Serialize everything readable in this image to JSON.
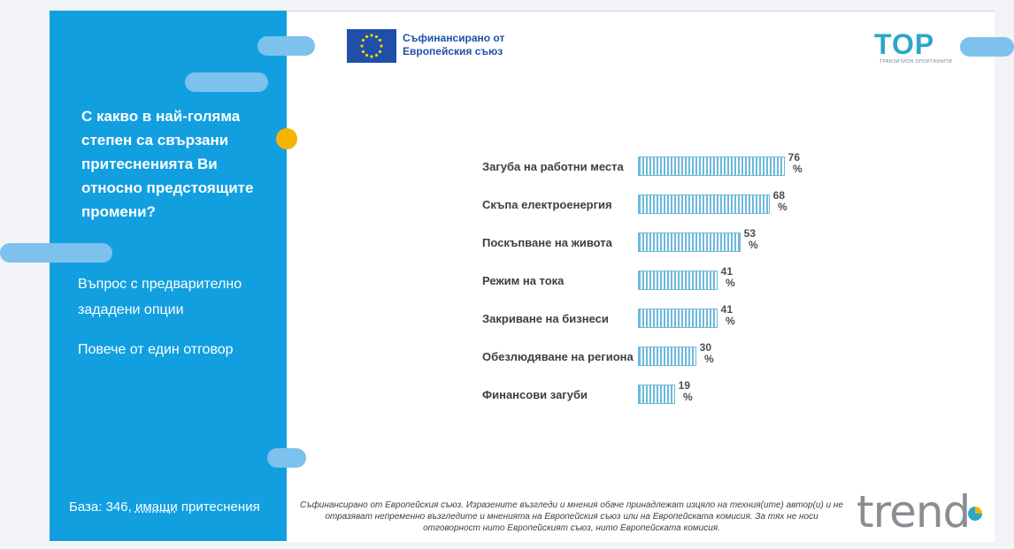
{
  "left_panel": {
    "question": "С какво в най-голяма степен са свързани притесненията Ви относно предстоящите промени?",
    "note1": "Въпрос с предварително зададени опции",
    "note2": "Повече от един отговор",
    "base_prefix": "База: 346,",
    "base_underlined": "имащи",
    "base_suffix": "притеснения"
  },
  "header": {
    "eu_line1": "Съфинансирано от",
    "eu_line2": "Европейския съюз",
    "top_logo": "TOP",
    "top_logo_sub": "ТРАНЗИТИОН ОПОРТЮНИТИ"
  },
  "chart_data": {
    "type": "bar",
    "orientation": "horizontal",
    "categories": [
      "Загуба на работни места",
      "Скъпа електроенергия",
      "Поскъпване на живота",
      "Режим на тока",
      "Закриване на бизнеси",
      "Обезлюдяване на региона",
      "Финансови загуби"
    ],
    "values": [
      76,
      68,
      53,
      41,
      41,
      30,
      19
    ],
    "value_suffix": "%",
    "xlim": [
      0,
      100
    ],
    "grid": false,
    "bar_color": "#6cb9dc"
  },
  "footer": {
    "disclaimer": "Съфинансирано от Европейския съюз. Изразените възгледи и мнения обаче принадлежат изцяло на техния(ите) автор(и) и не отразяват непременно възгледите и мненията на Европейския съюз или на Европейската комисия. За тях не носи отговорност нито Европейският съюз, нито Европейската комисия.",
    "brand": "trend"
  },
  "colors": {
    "panel_blue": "#129fe0",
    "accent_yellow": "#f4b400",
    "pill_blue": "#7cc2ec"
  }
}
